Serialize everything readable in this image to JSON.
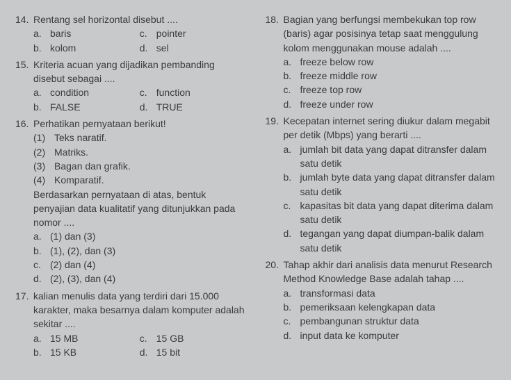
{
  "colors": {
    "bg": "#c8c9ca",
    "text": "#3a3b3c"
  },
  "typography": {
    "fontSize": 14,
    "lineHeight": 1.45,
    "fontFamily": "Arial"
  },
  "left": {
    "q14": {
      "num": "14.",
      "stem": "Rentang sel horizontal disebut ....",
      "a": "baris",
      "b": "kolom",
      "c": "pointer",
      "d": "sel"
    },
    "q15": {
      "num": "15.",
      "stem": "Kriteria acuan yang dijadikan pembanding disebut sebagai ....",
      "a": "condition",
      "b": "FALSE",
      "c": "function",
      "d": "TRUE"
    },
    "q16": {
      "num": "16.",
      "stem": "Perhatikan pernyataan berikut!",
      "s1n": "(1)",
      "s1": "Teks naratif.",
      "s2n": "(2)",
      "s2": "Matriks.",
      "s3n": "(3)",
      "s3": "Bagan dan grafik.",
      "s4n": "(4)",
      "s4": "Komparatif.",
      "para": "Berdasarkan pernyataan di atas, bentuk penyajian data kualitatif yang ditunjukkan pada nomor ....",
      "a": "(1) dan (3)",
      "b": "(1), (2), dan (3)",
      "c": "(2) dan (4)",
      "d": "(2), (3), dan (4)"
    },
    "q17": {
      "num": "17.",
      "stem": "kalian menulis data yang terdiri dari 15.000 karakter, maka besarnya dalam komputer adalah sekitar ....",
      "a": "15 MB",
      "b": "15 KB",
      "c": "15 GB",
      "d": "15 bit"
    }
  },
  "right": {
    "q18": {
      "num": "18.",
      "stem": "Bagian yang berfungsi membekukan top row (baris) agar posisinya tetap saat menggulung kolom menggunakan mouse adalah ....",
      "a": "freeze below row",
      "b": "freeze middle row",
      "c": "freeze top row",
      "d": "freeze under row"
    },
    "q19": {
      "num": "19.",
      "stem": "Kecepatan internet sering diukur dalam megabit per detik (Mbps) yang berarti ....",
      "a": "jumlah bit data yang dapat ditransfer dalam satu detik",
      "b": "jumlah byte data yang dapat ditransfer dalam satu detik",
      "c": "kapasitas bit data yang dapat diterima dalam satu detik",
      "d": "tegangan yang dapat diumpan-balik dalam satu detik"
    },
    "q20": {
      "num": "20.",
      "stem": "Tahap akhir dari analisis data menurut Research Method Knowledge Base adalah tahap ....",
      "a": "transformasi data",
      "b": "pemeriksaan kelengkapan data",
      "c": "pembangunan struktur data",
      "d": "input data ke komputer"
    }
  },
  "labels": {
    "a": "a.",
    "b": "b.",
    "c": "c.",
    "d": "d."
  }
}
